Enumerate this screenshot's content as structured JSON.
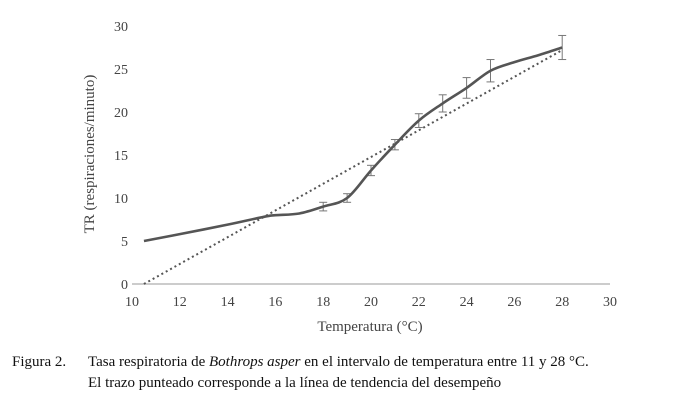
{
  "chart_data": {
    "type": "line",
    "xlabel": "Temperatura (°C)",
    "ylabel": "TR (respiraciones/minuto)",
    "xlim": [
      10,
      30
    ],
    "ylim": [
      0,
      30
    ],
    "xticks": [
      10,
      12,
      14,
      16,
      18,
      20,
      22,
      24,
      26,
      28,
      30
    ],
    "yticks": [
      0,
      5,
      10,
      15,
      20,
      25,
      30
    ],
    "grid": false,
    "legend": "none",
    "series": [
      {
        "style": "solid",
        "color": "#555555",
        "x": [
          10.5,
          12,
          14,
          15.5,
          16,
          17,
          18,
          19,
          20,
          21,
          22,
          23,
          24,
          25,
          26,
          27,
          28
        ],
        "y": [
          5.0,
          5.8,
          6.9,
          7.8,
          8.0,
          8.2,
          9.0,
          10.0,
          13.2,
          16.2,
          19.0,
          21.0,
          22.8,
          24.8,
          25.8,
          26.6,
          27.5
        ],
        "error": [
          0.3,
          0.3,
          0.3,
          0.3,
          0.3,
          0.4,
          0.5,
          0.5,
          0.6,
          0.6,
          0.8,
          1.0,
          1.2,
          1.3,
          0,
          0,
          1.4
        ],
        "error_bar_x": [
          18,
          19,
          20,
          21,
          22,
          23,
          24,
          25,
          28
        ]
      },
      {
        "style": "dotted",
        "color": "#555555",
        "x": [
          10.5,
          28
        ],
        "y": [
          0.0,
          27.2
        ]
      }
    ]
  },
  "caption": {
    "label": "Figura 2.",
    "line1_before": "Tasa respiratoria de ",
    "line1_species": "Bothrops asper",
    "line1_after": " en el intervalo de temperatura entre 11 y 28 °C.",
    "line2": "El trazo punteado corresponde a la línea de tendencia del desempeño"
  }
}
